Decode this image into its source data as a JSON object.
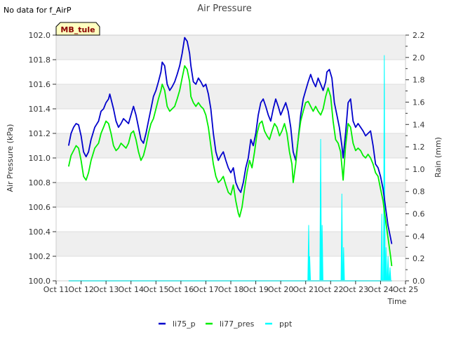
{
  "chart_data": {
    "type": "line",
    "title": "Air Pressure",
    "corner_note": "No data for f_AirP",
    "site_label": "MB_tule",
    "xlabel": "Time",
    "ylabel": "Air Pressure (kPa)",
    "y2label": "Rain (mm)",
    "xlim": [
      11,
      25
    ],
    "ylim": [
      100.0,
      102.0
    ],
    "y2lim": [
      0.0,
      2.2
    ],
    "x_ticks": [
      11,
      12,
      13,
      14,
      15,
      16,
      17,
      18,
      19,
      20,
      21,
      22,
      23,
      24,
      25
    ],
    "x_tick_labels": [
      "Oct 11",
      "Oct 12",
      "Oct 13",
      "Oct 14",
      "Oct 15",
      "Oct 16",
      "Oct 17",
      "Oct 18",
      "Oct 19",
      "Oct 20",
      "Oct 21",
      "Oct 22",
      "Oct 23",
      "Oct 24",
      "Oct 25"
    ],
    "y_ticks": [
      100.0,
      100.2,
      100.4,
      100.6,
      100.8,
      101.0,
      101.2,
      101.4,
      101.6,
      101.8,
      102.0
    ],
    "y_tick_labels": [
      "100.0",
      "100.2",
      "100.4",
      "100.6",
      "100.8",
      "101.0",
      "101.2",
      "101.4",
      "101.6",
      "101.8",
      "102.0"
    ],
    "y2_ticks": [
      0.0,
      0.2,
      0.4,
      0.6,
      0.8,
      1.0,
      1.2,
      1.4,
      1.6,
      1.8,
      2.0,
      2.2
    ],
    "y2_tick_labels": [
      "0.0",
      "0.2",
      "0.4",
      "0.6",
      "0.8",
      "1.0",
      "1.2",
      "1.4",
      "1.6",
      "1.8",
      "2.0",
      "2.2"
    ],
    "legend_position": "bottom-center",
    "series": [
      {
        "name": "li75_p",
        "axis": "left",
        "color": "#0000cc",
        "points": [
          [
            11.5,
            101.1
          ],
          [
            11.6,
            101.2
          ],
          [
            11.7,
            101.25
          ],
          [
            11.8,
            101.28
          ],
          [
            11.9,
            101.27
          ],
          [
            12.0,
            101.18
          ],
          [
            12.1,
            101.05
          ],
          [
            12.2,
            101.01
          ],
          [
            12.3,
            101.05
          ],
          [
            12.4,
            101.15
          ],
          [
            12.55,
            101.25
          ],
          [
            12.7,
            101.3
          ],
          [
            12.8,
            101.38
          ],
          [
            12.9,
            101.4
          ],
          [
            13.0,
            101.45
          ],
          [
            13.1,
            101.48
          ],
          [
            13.15,
            101.52
          ],
          [
            13.3,
            101.4
          ],
          [
            13.4,
            101.3
          ],
          [
            13.5,
            101.25
          ],
          [
            13.6,
            101.28
          ],
          [
            13.7,
            101.32
          ],
          [
            13.8,
            101.3
          ],
          [
            13.9,
            101.28
          ],
          [
            14.0,
            101.35
          ],
          [
            14.1,
            101.42
          ],
          [
            14.2,
            101.35
          ],
          [
            14.3,
            101.25
          ],
          [
            14.4,
            101.15
          ],
          [
            14.5,
            101.12
          ],
          [
            14.6,
            101.2
          ],
          [
            14.7,
            101.3
          ],
          [
            14.8,
            101.4
          ],
          [
            14.9,
            101.5
          ],
          [
            15.0,
            101.55
          ],
          [
            15.1,
            101.62
          ],
          [
            15.2,
            101.7
          ],
          [
            15.25,
            101.78
          ],
          [
            15.35,
            101.75
          ],
          [
            15.45,
            101.6
          ],
          [
            15.55,
            101.55
          ],
          [
            15.65,
            101.58
          ],
          [
            15.75,
            101.62
          ],
          [
            15.85,
            101.68
          ],
          [
            15.95,
            101.75
          ],
          [
            16.05,
            101.85
          ],
          [
            16.15,
            101.98
          ],
          [
            16.25,
            101.95
          ],
          [
            16.35,
            101.85
          ],
          [
            16.4,
            101.75
          ],
          [
            16.5,
            101.62
          ],
          [
            16.6,
            101.6
          ],
          [
            16.7,
            101.65
          ],
          [
            16.8,
            101.62
          ],
          [
            16.9,
            101.58
          ],
          [
            17.0,
            101.6
          ],
          [
            17.1,
            101.52
          ],
          [
            17.2,
            101.4
          ],
          [
            17.3,
            101.2
          ],
          [
            17.4,
            101.05
          ],
          [
            17.5,
            100.98
          ],
          [
            17.6,
            101.02
          ],
          [
            17.7,
            101.05
          ],
          [
            17.8,
            100.98
          ],
          [
            17.9,
            100.92
          ],
          [
            18.0,
            100.88
          ],
          [
            18.1,
            100.92
          ],
          [
            18.2,
            100.8
          ],
          [
            18.3,
            100.75
          ],
          [
            18.4,
            100.72
          ],
          [
            18.5,
            100.8
          ],
          [
            18.6,
            100.92
          ],
          [
            18.7,
            101.0
          ],
          [
            18.8,
            101.15
          ],
          [
            18.9,
            101.1
          ],
          [
            19.0,
            101.2
          ],
          [
            19.1,
            101.35
          ],
          [
            19.2,
            101.45
          ],
          [
            19.3,
            101.48
          ],
          [
            19.4,
            101.42
          ],
          [
            19.5,
            101.35
          ],
          [
            19.6,
            101.3
          ],
          [
            19.7,
            101.4
          ],
          [
            19.8,
            101.48
          ],
          [
            19.9,
            101.42
          ],
          [
            20.0,
            101.35
          ],
          [
            20.1,
            101.4
          ],
          [
            20.2,
            101.45
          ],
          [
            20.3,
            101.38
          ],
          [
            20.4,
            101.25
          ],
          [
            20.5,
            101.05
          ],
          [
            20.6,
            100.98
          ],
          [
            20.7,
            101.15
          ],
          [
            20.8,
            101.35
          ],
          [
            20.9,
            101.48
          ],
          [
            21.0,
            101.55
          ],
          [
            21.1,
            101.62
          ],
          [
            21.2,
            101.68
          ],
          [
            21.3,
            101.62
          ],
          [
            21.4,
            101.58
          ],
          [
            21.5,
            101.65
          ],
          [
            21.6,
            101.6
          ],
          [
            21.7,
            101.55
          ],
          [
            21.8,
            101.62
          ],
          [
            21.85,
            101.7
          ],
          [
            21.95,
            101.72
          ],
          [
            22.05,
            101.65
          ],
          [
            22.15,
            101.45
          ],
          [
            22.25,
            101.35
          ],
          [
            22.35,
            101.25
          ],
          [
            22.45,
            101.1
          ],
          [
            22.5,
            101.0
          ],
          [
            22.6,
            101.2
          ],
          [
            22.7,
            101.45
          ],
          [
            22.8,
            101.48
          ],
          [
            22.9,
            101.3
          ],
          [
            23.0,
            101.25
          ],
          [
            23.1,
            101.28
          ],
          [
            23.2,
            101.25
          ],
          [
            23.3,
            101.22
          ],
          [
            23.4,
            101.18
          ],
          [
            23.5,
            101.2
          ],
          [
            23.6,
            101.22
          ],
          [
            23.7,
            101.1
          ],
          [
            23.8,
            100.95
          ],
          [
            23.9,
            100.92
          ],
          [
            24.0,
            100.85
          ],
          [
            24.1,
            100.75
          ],
          [
            24.2,
            100.6
          ],
          [
            24.3,
            100.45
          ],
          [
            24.4,
            100.35
          ],
          [
            24.45,
            100.3
          ]
        ]
      },
      {
        "name": "li77_pres",
        "axis": "left",
        "color": "#00ee00",
        "points": [
          [
            11.5,
            100.93
          ],
          [
            11.6,
            101.02
          ],
          [
            11.7,
            101.06
          ],
          [
            11.8,
            101.1
          ],
          [
            11.9,
            101.08
          ],
          [
            12.0,
            100.98
          ],
          [
            12.1,
            100.85
          ],
          [
            12.2,
            100.82
          ],
          [
            12.3,
            100.88
          ],
          [
            12.4,
            100.98
          ],
          [
            12.55,
            101.08
          ],
          [
            12.7,
            101.12
          ],
          [
            12.8,
            101.2
          ],
          [
            12.9,
            101.25
          ],
          [
            13.0,
            101.3
          ],
          [
            13.1,
            101.28
          ],
          [
            13.2,
            101.2
          ],
          [
            13.3,
            101.1
          ],
          [
            13.4,
            101.06
          ],
          [
            13.5,
            101.08
          ],
          [
            13.6,
            101.12
          ],
          [
            13.7,
            101.1
          ],
          [
            13.8,
            101.08
          ],
          [
            13.9,
            101.12
          ],
          [
            14.0,
            101.2
          ],
          [
            14.1,
            101.22
          ],
          [
            14.2,
            101.15
          ],
          [
            14.3,
            101.05
          ],
          [
            14.4,
            100.98
          ],
          [
            14.5,
            101.02
          ],
          [
            14.6,
            101.1
          ],
          [
            14.7,
            101.2
          ],
          [
            14.8,
            101.28
          ],
          [
            14.9,
            101.32
          ],
          [
            15.0,
            101.4
          ],
          [
            15.1,
            101.48
          ],
          [
            15.2,
            101.55
          ],
          [
            15.25,
            101.6
          ],
          [
            15.35,
            101.55
          ],
          [
            15.45,
            101.42
          ],
          [
            15.55,
            101.38
          ],
          [
            15.65,
            101.4
          ],
          [
            15.75,
            101.42
          ],
          [
            15.85,
            101.48
          ],
          [
            15.95,
            101.55
          ],
          [
            16.05,
            101.65
          ],
          [
            16.15,
            101.75
          ],
          [
            16.25,
            101.72
          ],
          [
            16.35,
            101.62
          ],
          [
            16.4,
            101.5
          ],
          [
            16.5,
            101.45
          ],
          [
            16.6,
            101.42
          ],
          [
            16.7,
            101.45
          ],
          [
            16.8,
            101.42
          ],
          [
            16.9,
            101.4
          ],
          [
            17.0,
            101.35
          ],
          [
            17.1,
            101.25
          ],
          [
            17.2,
            101.1
          ],
          [
            17.3,
            100.95
          ],
          [
            17.4,
            100.85
          ],
          [
            17.5,
            100.8
          ],
          [
            17.6,
            100.82
          ],
          [
            17.7,
            100.85
          ],
          [
            17.8,
            100.78
          ],
          [
            17.9,
            100.72
          ],
          [
            18.0,
            100.7
          ],
          [
            18.1,
            100.78
          ],
          [
            18.2,
            100.65
          ],
          [
            18.3,
            100.55
          ],
          [
            18.35,
            100.52
          ],
          [
            18.45,
            100.6
          ],
          [
            18.55,
            100.75
          ],
          [
            18.65,
            100.88
          ],
          [
            18.75,
            100.98
          ],
          [
            18.85,
            100.92
          ],
          [
            18.95,
            101.05
          ],
          [
            19.05,
            101.2
          ],
          [
            19.15,
            101.28
          ],
          [
            19.25,
            101.3
          ],
          [
            19.35,
            101.22
          ],
          [
            19.45,
            101.18
          ],
          [
            19.55,
            101.15
          ],
          [
            19.65,
            101.22
          ],
          [
            19.75,
            101.28
          ],
          [
            19.85,
            101.25
          ],
          [
            19.95,
            101.18
          ],
          [
            20.05,
            101.22
          ],
          [
            20.15,
            101.28
          ],
          [
            20.25,
            101.2
          ],
          [
            20.35,
            101.05
          ],
          [
            20.45,
            100.95
          ],
          [
            20.5,
            100.8
          ],
          [
            20.6,
            100.95
          ],
          [
            20.7,
            101.15
          ],
          [
            20.8,
            101.3
          ],
          [
            20.9,
            101.38
          ],
          [
            21.0,
            101.45
          ],
          [
            21.1,
            101.46
          ],
          [
            21.2,
            101.42
          ],
          [
            21.3,
            101.38
          ],
          [
            21.4,
            101.42
          ],
          [
            21.5,
            101.38
          ],
          [
            21.6,
            101.35
          ],
          [
            21.7,
            101.4
          ],
          [
            21.8,
            101.5
          ],
          [
            21.9,
            101.57
          ],
          [
            22.0,
            101.5
          ],
          [
            22.1,
            101.3
          ],
          [
            22.2,
            101.15
          ],
          [
            22.3,
            101.12
          ],
          [
            22.4,
            101.05
          ],
          [
            22.5,
            100.82
          ],
          [
            22.6,
            101.1
          ],
          [
            22.7,
            101.28
          ],
          [
            22.8,
            101.25
          ],
          [
            22.9,
            101.12
          ],
          [
            23.0,
            101.06
          ],
          [
            23.1,
            101.08
          ],
          [
            23.2,
            101.06
          ],
          [
            23.3,
            101.02
          ],
          [
            23.4,
            101.0
          ],
          [
            23.5,
            101.03
          ],
          [
            23.6,
            101.0
          ],
          [
            23.7,
            100.95
          ],
          [
            23.8,
            100.88
          ],
          [
            23.9,
            100.85
          ],
          [
            24.0,
            100.75
          ],
          [
            24.1,
            100.65
          ],
          [
            24.2,
            100.5
          ],
          [
            24.3,
            100.35
          ],
          [
            24.4,
            100.2
          ],
          [
            24.45,
            100.12
          ]
        ]
      },
      {
        "name": "ppt",
        "axis": "right",
        "color": "#00ffff",
        "spikes": [
          [
            21.12,
            0.5
          ],
          [
            21.16,
            0.22
          ],
          [
            21.6,
            1.27
          ],
          [
            21.66,
            0.5
          ],
          [
            22.45,
            0.78
          ],
          [
            22.52,
            0.3
          ],
          [
            24.05,
            0.6
          ],
          [
            24.15,
            2.02
          ],
          [
            24.22,
            0.3
          ],
          [
            24.3,
            0.22
          ],
          [
            24.38,
            0.12
          ]
        ],
        "baseline_range": [
          11.5,
          24.45
        ]
      }
    ]
  }
}
